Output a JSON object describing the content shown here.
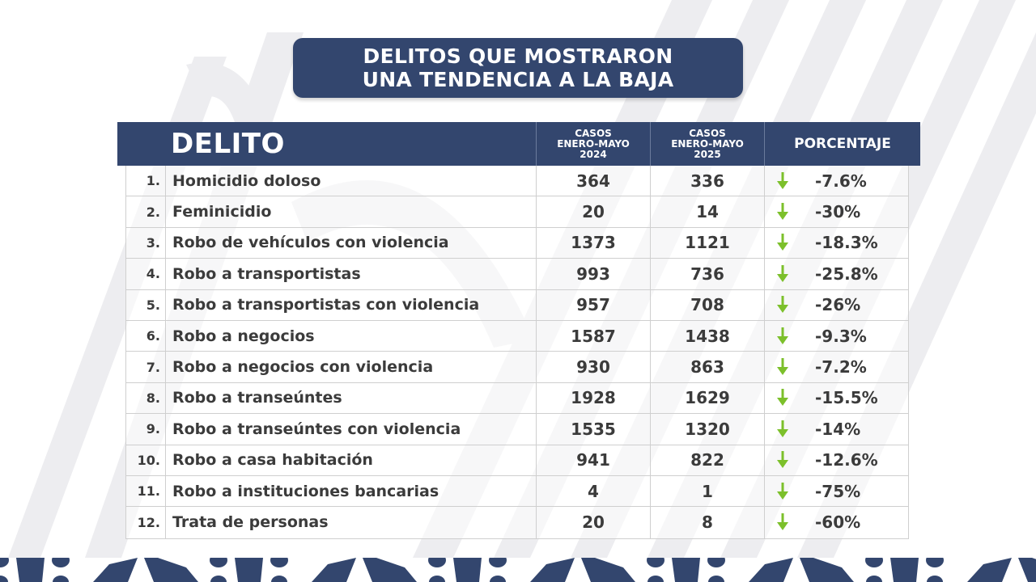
{
  "title": {
    "line1": "DELITOS QUE MOSTRARON",
    "line2": "UNA TENDENCIA A LA BAJA"
  },
  "table": {
    "headers": {
      "delito": "DELITO",
      "casos_2024": "CASOS\nENERO-MAYO\n2024",
      "casos_2025": "CASOS\nENERO-MAYO\n2025",
      "porcentaje": "PORCENTAJE"
    },
    "rows": [
      {
        "num": "1.",
        "delito": "Homicidio doloso",
        "c2024": "364",
        "c2025": "336",
        "pct": "-7.6%",
        "trend": "down-arrow-icon"
      },
      {
        "num": "2.",
        "delito": "Feminicidio",
        "c2024": "20",
        "c2025": "14",
        "pct": "-30%",
        "trend": "down-arrow-icon"
      },
      {
        "num": "3.",
        "delito": "Robo de vehículos con violencia",
        "c2024": "1373",
        "c2025": "1121",
        "pct": "-18.3%",
        "trend": "down-arrow-icon"
      },
      {
        "num": "4.",
        "delito": "Robo a transportistas",
        "c2024": "993",
        "c2025": "736",
        "pct": "-25.8%",
        "trend": "down-arrow-icon"
      },
      {
        "num": "5.",
        "delito": "Robo a transportistas con violencia",
        "c2024": "957",
        "c2025": "708",
        "pct": "-26%",
        "trend": "down-arrow-icon"
      },
      {
        "num": "6.",
        "delito": "Robo a negocios",
        "c2024": "1587",
        "c2025": "1438",
        "pct": "-9.3%",
        "trend": "down-arrow-icon"
      },
      {
        "num": "7.",
        "delito": "Robo a negocios con violencia",
        "c2024": "930",
        "c2025": "863",
        "pct": "-7.2%",
        "trend": "down-arrow-icon"
      },
      {
        "num": "8.",
        "delito": "Robo a transeúntes",
        "c2024": "1928",
        "c2025": "1629",
        "pct": "-15.5%",
        "trend": "down-arrow-icon"
      },
      {
        "num": "9.",
        "delito": "Robo a transeúntes con violencia",
        "c2024": "1535",
        "c2025": "1320",
        "pct": "-14%",
        "trend": "down-arrow-icon"
      },
      {
        "num": "10.",
        "delito": "Robo a casa habitación",
        "c2024": "941",
        "c2025": "822",
        "pct": "-12.6%",
        "trend": "down-arrow-icon"
      },
      {
        "num": "11.",
        "delito": "Robo a instituciones bancarias",
        "c2024": "4",
        "c2025": "1",
        "pct": "-75%",
        "trend": "down-arrow-icon"
      },
      {
        "num": "12.",
        "delito": "Trata de personas",
        "c2024": "20",
        "c2025": "8",
        "pct": "-60%",
        "trend": "down-arrow-icon"
      }
    ]
  },
  "colors": {
    "navy": "#33466e",
    "arrow_green": "#7cc02b",
    "text": "#3b3b3b",
    "stripe": "#ececef"
  }
}
